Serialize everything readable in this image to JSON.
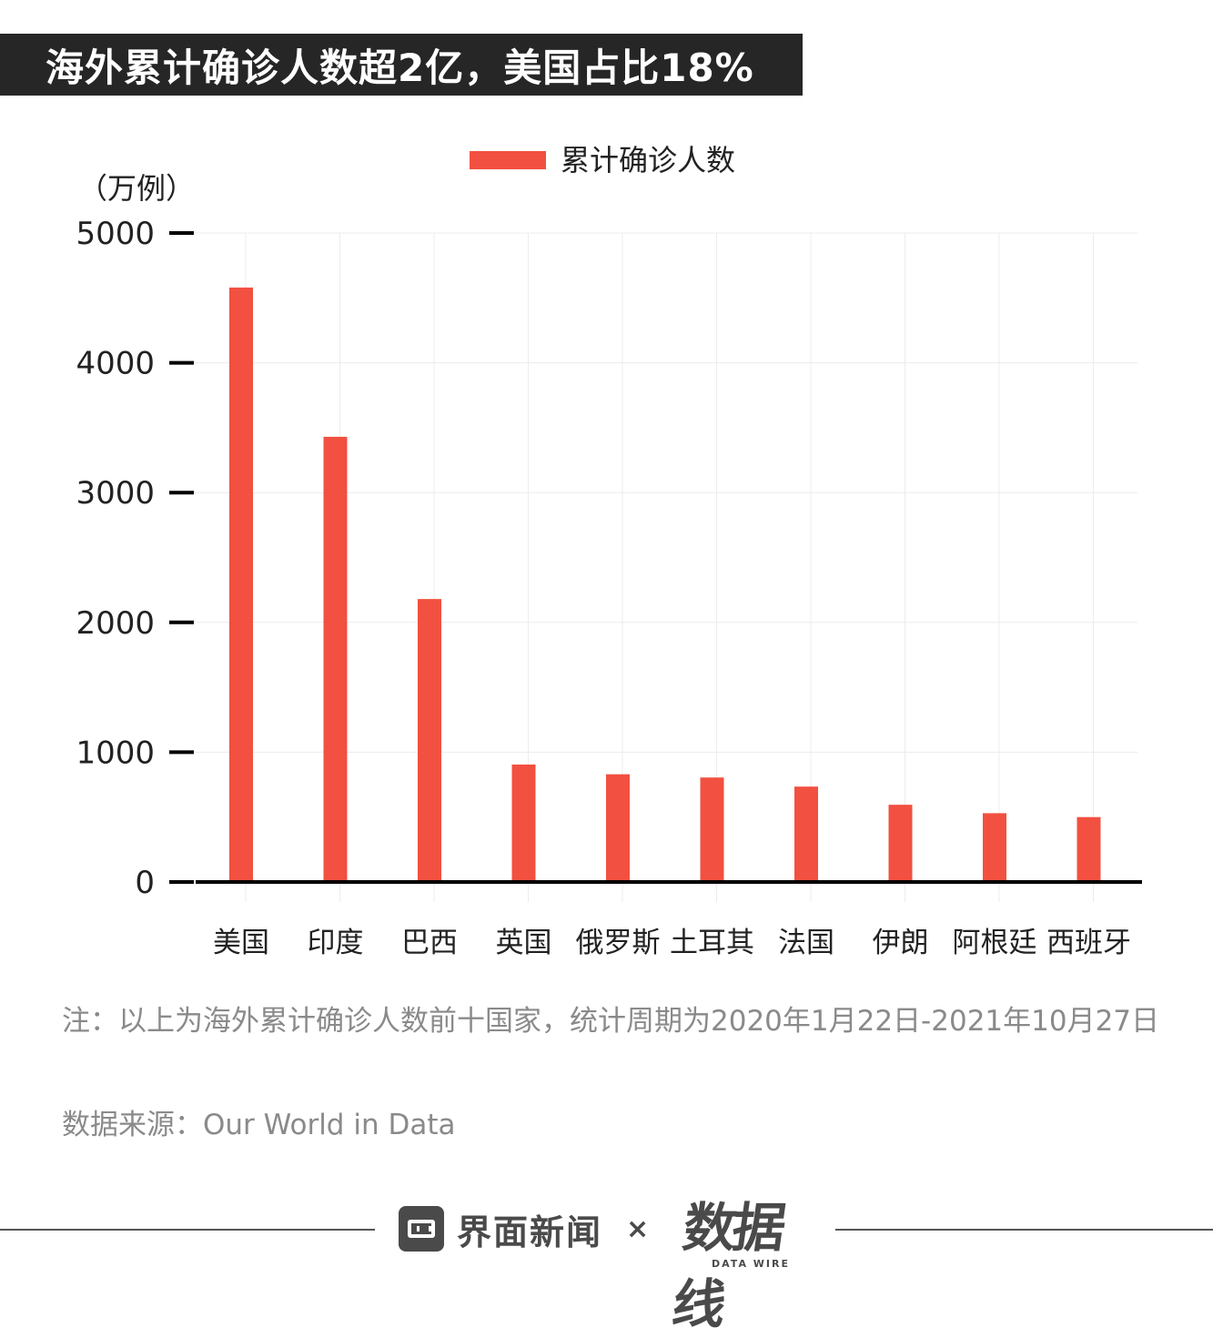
{
  "title": "海外累计确诊人数超2亿，美国占比18%",
  "note": "注：以上为海外累计确诊人数前十国家，统计周期为2020年1月22日-2021年10月27日",
  "source": "数据来源：Our World in Data",
  "footer": {
    "brand1": "界面新闻",
    "separator": "×",
    "brand2": "数据线",
    "brand2_sub": "DATA WIRE"
  },
  "colors": {
    "bar": "#f25040",
    "title_bg": "#262626",
    "axis": "#000000",
    "note_text": "#8a8a8a"
  },
  "chart_data": {
    "type": "bar",
    "title": "",
    "ylabel": "（万例）",
    "xlabel": "",
    "legend": {
      "label": "累计确诊人数",
      "placement": "top-center"
    },
    "ylim": [
      0,
      5000
    ],
    "yticks": [
      0,
      1000,
      2000,
      3000,
      4000,
      5000
    ],
    "categories": [
      "美国",
      "印度",
      "巴西",
      "英国",
      "俄罗斯",
      "土耳其",
      "法国",
      "伊朗",
      "阿根廷",
      "西班牙"
    ],
    "series": [
      {
        "name": "累计确诊人数",
        "values": [
          4580,
          3430,
          2180,
          905,
          830,
          805,
          735,
          595,
          530,
          500
        ]
      }
    ],
    "grid": true
  }
}
